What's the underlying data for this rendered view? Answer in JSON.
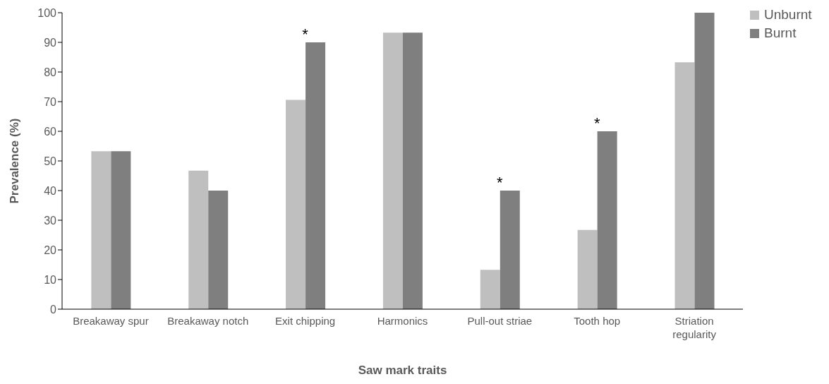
{
  "chart_data": {
    "type": "bar",
    "xlabel": "Saw mark traits",
    "ylabel": "Prevalence (%)",
    "categories": [
      "Breakaway spur",
      "Breakaway notch",
      "Exit chipping",
      "Harmonics",
      "Pull-out striae",
      "Tooth hop",
      "Striation regularity"
    ],
    "series": [
      {
        "name": "Unburnt",
        "color": "#bfbfbf",
        "values": [
          53.3,
          46.7,
          70.6,
          93.3,
          13.3,
          26.7,
          83.3
        ]
      },
      {
        "name": "Burnt",
        "color": "#7f7f7f",
        "values": [
          53.3,
          40,
          90,
          93.3,
          40,
          60,
          100
        ]
      }
    ],
    "ylim": [
      0,
      100
    ],
    "yticks": [
      0,
      10,
      20,
      30,
      40,
      50,
      60,
      70,
      80,
      90,
      100
    ],
    "grid": false,
    "legend": "top right",
    "annotations": [
      {
        "text": "*",
        "x": "Exit chipping",
        "y": 90
      },
      {
        "text": "*",
        "x": "Pull-out striae",
        "y": 40
      },
      {
        "text": "*",
        "x": "Tooth hop",
        "y": 60
      }
    ]
  }
}
